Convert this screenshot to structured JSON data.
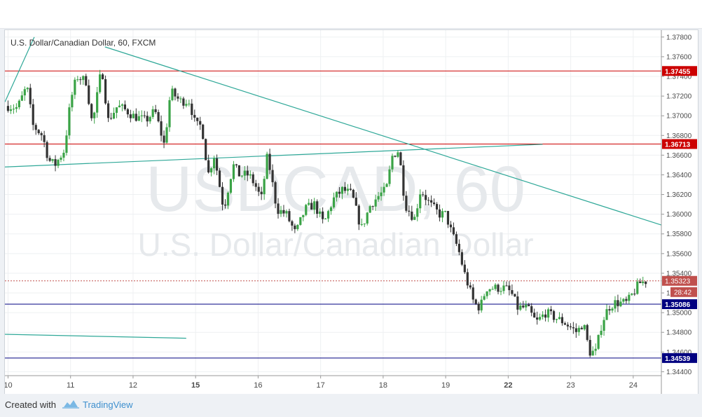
{
  "chart_data": {
    "type": "candlestick",
    "title": "U.S. Dollar/Canadian Dollar, 60, FXCM",
    "watermark_symbol": "USDCAD, 60",
    "watermark_name": "U.S. Dollar/Canadian Dollar",
    "y_ticks": [
      "1.37800",
      "1.37600",
      "1.37400",
      "1.37200",
      "1.37000",
      "1.36800",
      "1.36600",
      "1.36400",
      "1.36200",
      "1.36000",
      "1.35800",
      "1.35600",
      "1.35400",
      "1.35200",
      "1.35000",
      "1.34800",
      "1.34600",
      "1.34400"
    ],
    "ylim": [
      1.3436,
      1.3787
    ],
    "x_ticks": [
      {
        "label": "10",
        "pos": 0.0,
        "bold": false
      },
      {
        "label": "11",
        "pos": 1.0,
        "bold": false
      },
      {
        "label": "12",
        "pos": 2.0,
        "bold": false
      },
      {
        "label": "15",
        "pos": 3.0,
        "bold": true
      },
      {
        "label": "16",
        "pos": 4.0,
        "bold": false
      },
      {
        "label": "17",
        "pos": 5.0,
        "bold": false
      },
      {
        "label": "18",
        "pos": 6.0,
        "bold": false
      },
      {
        "label": "19",
        "pos": 7.0,
        "bold": false
      },
      {
        "label": "22",
        "pos": 8.0,
        "bold": true
      },
      {
        "label": "23",
        "pos": 9.0,
        "bold": false
      },
      {
        "label": "24",
        "pos": 10.0,
        "bold": false
      }
    ],
    "xlim": [
      -0.05,
      10.45
    ],
    "levels": [
      {
        "value": 1.37455,
        "label": "1.37455",
        "color": "#cc0000",
        "style": "solid"
      },
      {
        "value": 1.36713,
        "label": "1.36713",
        "color": "#cc0000",
        "style": "solid"
      },
      {
        "value": 1.35086,
        "label": "1.35086",
        "color": "#000080",
        "style": "solid"
      },
      {
        "value": 1.34539,
        "label": "1.34539",
        "color": "#000080",
        "style": "solid"
      }
    ],
    "current": {
      "value": 1.35323,
      "label": "1.35323",
      "countdown": "28:42",
      "color": "#c0504d"
    },
    "trendlines": [
      {
        "x1": -0.05,
        "y1": 1.3714,
        "x2": 0.42,
        "y2": 1.378
      },
      {
        "x1": 1.55,
        "y1": 1.377,
        "x2": 10.45,
        "y2": 1.3589
      },
      {
        "x1": -0.05,
        "y1": 1.3648,
        "x2": 8.55,
        "y2": 1.3671
      },
      {
        "x1": -0.05,
        "y1": 1.3478,
        "x2": 2.85,
        "y2": 1.3474
      }
    ],
    "candle_colors": {
      "up": "#3aa346",
      "down": "#333333",
      "trendline": "#2fa898"
    },
    "path": [
      [
        0.0,
        1.371
      ],
      [
        0.15,
        1.3708
      ],
      [
        0.3,
        1.373
      ],
      [
        0.4,
        1.369
      ],
      [
        0.55,
        1.368
      ],
      [
        0.65,
        1.3655
      ],
      [
        0.75,
        1.365
      ],
      [
        0.9,
        1.3665
      ],
      [
        1.0,
        1.3715
      ],
      [
        1.1,
        1.374
      ],
      [
        1.25,
        1.3735
      ],
      [
        1.35,
        1.369
      ],
      [
        1.5,
        1.375
      ],
      [
        1.6,
        1.3695
      ],
      [
        1.75,
        1.371
      ],
      [
        1.9,
        1.3705
      ],
      [
        2.0,
        1.37
      ],
      [
        2.2,
        1.3695
      ],
      [
        2.35,
        1.3705
      ],
      [
        2.5,
        1.367
      ],
      [
        2.6,
        1.3725
      ],
      [
        2.75,
        1.3715
      ],
      [
        2.9,
        1.3715
      ],
      [
        3.0,
        1.369
      ],
      [
        3.1,
        1.369
      ],
      [
        3.2,
        1.364
      ],
      [
        3.3,
        1.366
      ],
      [
        3.45,
        1.3605
      ],
      [
        3.6,
        1.365
      ],
      [
        3.7,
        1.364
      ],
      [
        3.85,
        1.364
      ],
      [
        3.95,
        1.363
      ],
      [
        4.05,
        1.3615
      ],
      [
        4.15,
        1.366
      ],
      [
        4.3,
        1.3605
      ],
      [
        4.45,
        1.36
      ],
      [
        4.6,
        1.358
      ],
      [
        4.75,
        1.3605
      ],
      [
        4.9,
        1.361
      ],
      [
        5.05,
        1.359
      ],
      [
        5.2,
        1.3615
      ],
      [
        5.35,
        1.3625
      ],
      [
        5.5,
        1.362
      ],
      [
        5.65,
        1.3585
      ],
      [
        5.8,
        1.361
      ],
      [
        5.95,
        1.362
      ],
      [
        6.05,
        1.3625
      ],
      [
        6.15,
        1.366
      ],
      [
        6.25,
        1.3665
      ],
      [
        6.35,
        1.361
      ],
      [
        6.5,
        1.3595
      ],
      [
        6.6,
        1.3625
      ],
      [
        6.75,
        1.361
      ],
      [
        6.9,
        1.36
      ],
      [
        7.0,
        1.36
      ],
      [
        7.1,
        1.358
      ],
      [
        7.2,
        1.3565
      ],
      [
        7.3,
        1.354
      ],
      [
        7.45,
        1.351
      ],
      [
        7.55,
        1.3505
      ],
      [
        7.65,
        1.3525
      ],
      [
        7.8,
        1.3525
      ],
      [
        7.95,
        1.3525
      ],
      [
        8.05,
        1.352
      ],
      [
        8.15,
        1.3505
      ],
      [
        8.3,
        1.3505
      ],
      [
        8.45,
        1.349
      ],
      [
        8.6,
        1.35
      ],
      [
        8.75,
        1.3495
      ],
      [
        8.9,
        1.349
      ],
      [
        9.0,
        1.3485
      ],
      [
        9.1,
        1.348
      ],
      [
        9.2,
        1.349
      ],
      [
        9.3,
        1.346
      ],
      [
        9.4,
        1.346
      ],
      [
        9.5,
        1.349
      ],
      [
        9.6,
        1.3505
      ],
      [
        9.7,
        1.351
      ],
      [
        9.8,
        1.351
      ],
      [
        9.9,
        1.351
      ],
      [
        10.0,
        1.352
      ],
      [
        10.1,
        1.353
      ],
      [
        10.2,
        1.3532
      ]
    ]
  },
  "footer": {
    "created_with": "Created with",
    "brand": "TradingView"
  }
}
